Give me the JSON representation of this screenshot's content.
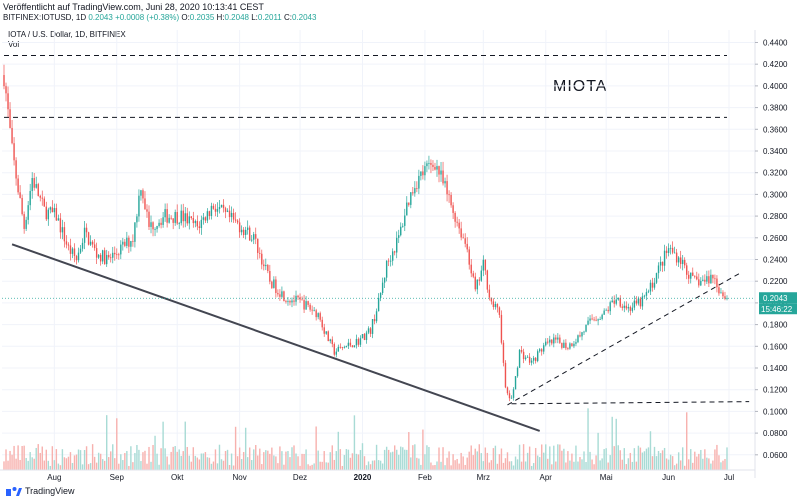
{
  "header": {
    "published": "Veröffentlicht auf TradingView.com, Juni 28, 2020 10:13:41 CEST",
    "ohlc": {
      "ticker": "BITFINEX:IOTUSD, 1D",
      "last": "0.2043",
      "change": "+0.0008 (+0.38%)",
      "o_label": "O:",
      "o": "0.2035",
      "h_label": "H:",
      "h": "0.2048",
      "l_label": "L:",
      "l": "0.2011",
      "c_label": "C:",
      "c": "0.2043"
    },
    "symbol_title": "IOTA / U.S. Dollar, 1D, BITFINEX",
    "vol_label": "Vol"
  },
  "annotation": "MIOTA",
  "branding": {
    "logo_text": "TradingView",
    "logo_icon": "tradingview-logo-icon"
  },
  "colors": {
    "up": "#26a69a",
    "down": "#ef5350",
    "price_line": "#26a69a",
    "trendline": "#434651",
    "dashed": "#131722"
  },
  "price_tag": {
    "price": "0.2043",
    "countdown": "15:46:22"
  },
  "chart_data": {
    "type": "candlestick",
    "title": "IOTA / U.S. Dollar, 1D, BITFINEX",
    "x_ticks": [
      "Aug",
      "Sep",
      "Okt",
      "Nov",
      "Dez",
      "2020",
      "Feb",
      "Mrz",
      "Apr",
      "Mai",
      "Jun",
      "Jul"
    ],
    "y_ticks": [
      "0.4400",
      "0.4200",
      "0.4000",
      "0.3800",
      "0.3600",
      "0.3400",
      "0.3200",
      "0.3000",
      "0.2800",
      "0.2600",
      "0.2400",
      "0.2200",
      "0.2000",
      "0.1800",
      "0.1600",
      "0.1400",
      "0.1200",
      "0.1000",
      "0.0800",
      "0.0600"
    ],
    "ylim": [
      0.046,
      0.4515
    ],
    "x_range_days": [
      0,
      359
    ],
    "x_tick_days": [
      25,
      56,
      86,
      117,
      147,
      178,
      209,
      238,
      269,
      299,
      330,
      360
    ],
    "close_anchors": [
      [
        0,
        0.41
      ],
      [
        4,
        0.34
      ],
      [
        10,
        0.27
      ],
      [
        14,
        0.315
      ],
      [
        20,
        0.285
      ],
      [
        26,
        0.28
      ],
      [
        32,
        0.25
      ],
      [
        36,
        0.24
      ],
      [
        40,
        0.265
      ],
      [
        46,
        0.245
      ],
      [
        52,
        0.24
      ],
      [
        58,
        0.25
      ],
      [
        64,
        0.26
      ],
      [
        68,
        0.31
      ],
      [
        72,
        0.27
      ],
      [
        80,
        0.28
      ],
      [
        88,
        0.28
      ],
      [
        96,
        0.27
      ],
      [
        104,
        0.29
      ],
      [
        110,
        0.28
      ],
      [
        118,
        0.27
      ],
      [
        124,
        0.26
      ],
      [
        132,
        0.22
      ],
      [
        140,
        0.205
      ],
      [
        148,
        0.2
      ],
      [
        156,
        0.19
      ],
      [
        160,
        0.17
      ],
      [
        164,
        0.155
      ],
      [
        170,
        0.16
      ],
      [
        176,
        0.165
      ],
      [
        182,
        0.175
      ],
      [
        186,
        0.2
      ],
      [
        190,
        0.235
      ],
      [
        196,
        0.26
      ],
      [
        200,
        0.29
      ],
      [
        204,
        0.31
      ],
      [
        208,
        0.32
      ],
      [
        214,
        0.33
      ],
      [
        220,
        0.3
      ],
      [
        226,
        0.27
      ],
      [
        230,
        0.25
      ],
      [
        234,
        0.21
      ],
      [
        238,
        0.235
      ],
      [
        242,
        0.2
      ],
      [
        246,
        0.19
      ],
      [
        249,
        0.12
      ],
      [
        252,
        0.11
      ],
      [
        256,
        0.155
      ],
      [
        262,
        0.145
      ],
      [
        268,
        0.16
      ],
      [
        274,
        0.165
      ],
      [
        280,
        0.16
      ],
      [
        286,
        0.17
      ],
      [
        292,
        0.185
      ],
      [
        298,
        0.19
      ],
      [
        304,
        0.205
      ],
      [
        310,
        0.195
      ],
      [
        316,
        0.2
      ],
      [
        320,
        0.21
      ],
      [
        326,
        0.235
      ],
      [
        330,
        0.25
      ],
      [
        336,
        0.24
      ],
      [
        342,
        0.22
      ],
      [
        348,
        0.22
      ],
      [
        352,
        0.225
      ],
      [
        356,
        0.21
      ],
      [
        359,
        0.2043
      ]
    ],
    "last_price": 0.2043,
    "horizontal_levels": [
      {
        "price": 0.428,
        "style": "dashed",
        "from_day": 0,
        "to_day": 359
      },
      {
        "price": 0.371,
        "style": "dashed",
        "from_day": 0,
        "to_day": 359
      }
    ],
    "trendlines": [
      {
        "style": "solid",
        "from": [
          4,
          0.254
        ],
        "to": [
          266,
          0.082
        ]
      },
      {
        "style": "dashed",
        "from": [
          250,
          0.106
        ],
        "to": [
          366,
          0.228
        ]
      },
      {
        "style": "dashed",
        "from": [
          252,
          0.107
        ],
        "to": [
          370,
          0.109
        ]
      }
    ],
    "volume_panel": {
      "label": "Vol"
    }
  }
}
